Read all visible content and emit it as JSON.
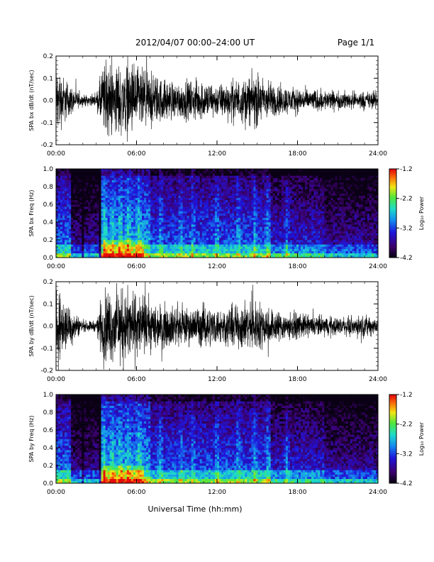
{
  "header": {
    "title": "2012/04/07   00:00–24:00 UT",
    "page": "Page 1/1"
  },
  "chart_data": [
    {
      "type": "line",
      "panel": "bx-waveform",
      "ylabel": "SPA bx dB/dt (nT/sec)",
      "ylim": [
        -0.2,
        0.2
      ],
      "yticks": [
        -0.2,
        -0.1,
        0.0,
        0.1,
        0.2
      ],
      "ytick_labels": [
        "-0.2",
        "-0.1",
        "0.0",
        "0.1",
        "0.2"
      ],
      "xlim": [
        "00:00",
        "24:00"
      ],
      "xticks": [
        "00:00",
        "06:00",
        "12:00",
        "18:00",
        "24:00"
      ],
      "envelope": {
        "hours": [
          0,
          0.5,
          1,
          1.5,
          2,
          2.5,
          3,
          3.5,
          4,
          4.5,
          5,
          5.5,
          6,
          7,
          8,
          9,
          10,
          11,
          12,
          13,
          14,
          15,
          16,
          17,
          18,
          19,
          20,
          21,
          22,
          23,
          24
        ],
        "amplitude": [
          0.2,
          0.14,
          0.09,
          0.05,
          0.03,
          0.03,
          0.03,
          0.2,
          0.2,
          0.2,
          0.2,
          0.2,
          0.19,
          0.15,
          0.12,
          0.1,
          0.11,
          0.11,
          0.09,
          0.11,
          0.12,
          0.15,
          0.1,
          0.08,
          0.07,
          0.06,
          0.06,
          0.05,
          0.05,
          0.05,
          0.05
        ]
      }
    },
    {
      "type": "heatmap",
      "panel": "bx-spectrogram",
      "ylabel": "SPA bx Freq (Hz)",
      "ylim": [
        0.0,
        1.0
      ],
      "yticks": [
        0.0,
        0.2,
        0.4,
        0.6,
        0.8,
        1.0
      ],
      "ytick_labels": [
        "0.0",
        "0.2",
        "0.4",
        "0.6",
        "0.8",
        "1.0"
      ],
      "xlim": [
        "00:00",
        "24:00"
      ],
      "xticks": [
        "00:00",
        "06:00",
        "12:00",
        "18:00",
        "24:00"
      ],
      "colorbar": {
        "label": "Log₁₀ Power",
        "range": [
          -4.2,
          -1.2
        ],
        "ticks": [
          "-1.2",
          "-2.2",
          "-3.2",
          "-4.2"
        ]
      },
      "bright_bands_hours": [
        3.6,
        4.2,
        4.8,
        5.4,
        6.2,
        7.8,
        9.3,
        10.2,
        12.0,
        13.6,
        14.8,
        15.8,
        17.2
      ]
    },
    {
      "type": "line",
      "panel": "by-waveform",
      "ylabel": "SPA by dB/dt (nT/sec)",
      "ylim": [
        -0.2,
        0.2
      ],
      "yticks": [
        -0.2,
        -0.1,
        0.0,
        0.1,
        0.2
      ],
      "ytick_labels": [
        "-0.2",
        "-0.1",
        "0.0",
        "0.1",
        "0.2"
      ],
      "xlim": [
        "00:00",
        "24:00"
      ],
      "xticks": [
        "00:00",
        "06:00",
        "12:00",
        "18:00",
        "24:00"
      ],
      "envelope": {
        "hours": [
          0,
          0.5,
          1,
          1.5,
          2,
          2.5,
          3,
          3.5,
          4,
          4.5,
          5,
          5.5,
          6,
          7,
          8,
          9,
          10,
          11,
          12,
          13,
          14,
          15,
          16,
          17,
          18,
          19,
          20,
          21,
          22,
          23,
          24
        ],
        "amplitude": [
          0.2,
          0.16,
          0.12,
          0.07,
          0.03,
          0.03,
          0.03,
          0.2,
          0.2,
          0.2,
          0.2,
          0.2,
          0.18,
          0.14,
          0.12,
          0.11,
          0.1,
          0.12,
          0.1,
          0.11,
          0.13,
          0.14,
          0.1,
          0.08,
          0.07,
          0.06,
          0.06,
          0.05,
          0.05,
          0.06,
          0.05
        ]
      }
    },
    {
      "type": "heatmap",
      "panel": "by-spectrogram",
      "ylabel": "SPA by Freq (Hz)",
      "ylim": [
        0.0,
        1.0
      ],
      "yticks": [
        0.0,
        0.2,
        0.4,
        0.6,
        0.8,
        1.0
      ],
      "ytick_labels": [
        "0.0",
        "0.2",
        "0.4",
        "0.6",
        "0.8",
        "1.0"
      ],
      "xlim": [
        "00:00",
        "24:00"
      ],
      "xticks": [
        "00:00",
        "06:00",
        "12:00",
        "18:00",
        "24:00"
      ],
      "colorbar": {
        "label": "Log₁₀ Power",
        "range": [
          -4.2,
          -1.2
        ],
        "ticks": [
          "-1.2",
          "-2.2",
          "-3.2",
          "-4.2"
        ]
      },
      "bright_bands_hours": [
        3.6,
        4.2,
        4.8,
        5.4,
        6.2,
        7.8,
        9.3,
        10.2,
        12.0,
        13.6,
        14.8,
        15.8,
        17.2
      ]
    }
  ],
  "xlabel": "Universal Time (hh:mm)"
}
